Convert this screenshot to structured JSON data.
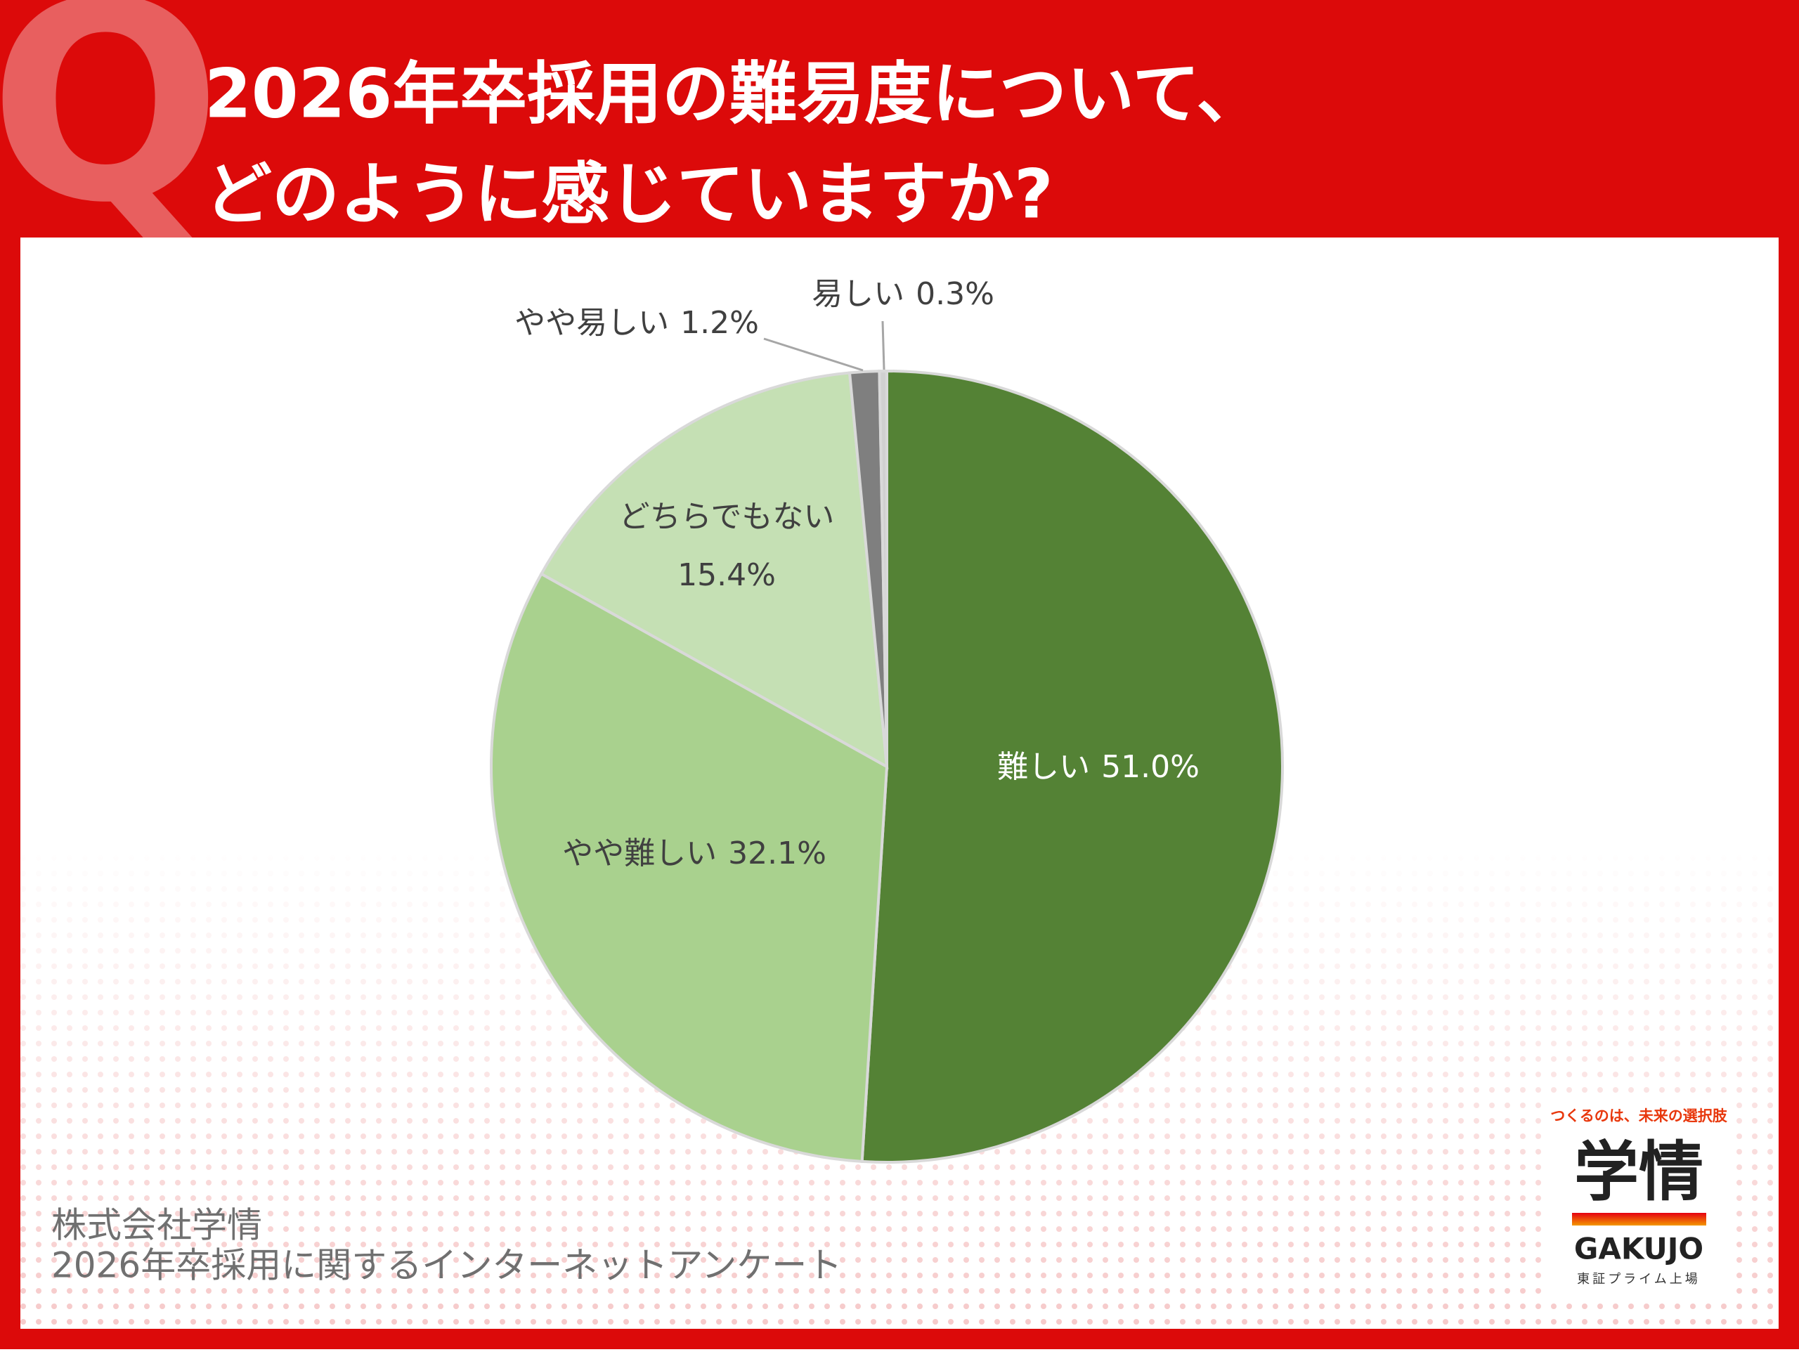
{
  "header": {
    "mark": "Q",
    "title_lines": [
      "2026年卒採用の難易度について、",
      "どのように感じていますか?"
    ]
  },
  "chart_data": {
    "type": "pie",
    "categories": [
      "難しい",
      "やや難しい",
      "どちらでもない",
      "やや易しい",
      "易しい"
    ],
    "values": [
      51.0,
      32.1,
      15.4,
      1.2,
      0.3
    ],
    "value_labels": [
      "51.0%",
      "32.1%",
      "15.4%",
      "1.2%",
      "0.3%"
    ],
    "colors": [
      "#548235",
      "#a9d18e",
      "#c5e0b4",
      "#7f7f7f",
      "#d0d0d0"
    ]
  },
  "footer": {
    "lines": [
      "株式会社学情",
      "2026年卒採用に関するインターネットアンケート"
    ]
  },
  "logo": {
    "tagline": "つくるのは、未来の選択肢",
    "name": "学情",
    "roman": "GAKUJO",
    "note": "東証プライム上場"
  }
}
